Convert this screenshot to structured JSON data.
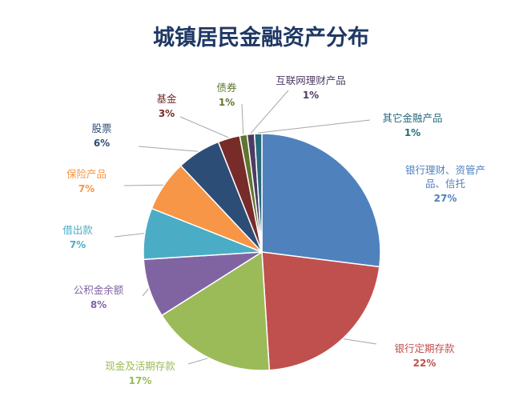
{
  "chart_data": {
    "type": "pie",
    "title": "城镇居民金融资产分布",
    "colors": {
      "title": "#1f3864"
    },
    "slices": [
      {
        "label": "银行理财、资管产品、信托",
        "lines": [
          "银行理财、资管产",
          "品、信托"
        ],
        "value": 27,
        "pct_text": "27%",
        "color": "#4f81bd",
        "text_color": "#4f81bd"
      },
      {
        "label": "银行定期存款",
        "lines": [
          "银行定期存款"
        ],
        "value": 22,
        "pct_text": "22%",
        "color": "#c0504d",
        "text_color": "#c0504d"
      },
      {
        "label": "现金及活期存款",
        "lines": [
          "现金及活期存款"
        ],
        "value": 17,
        "pct_text": "17%",
        "color": "#9bbb59",
        "text_color": "#9bbb59"
      },
      {
        "label": "公积金余额",
        "lines": [
          "公积金余额"
        ],
        "value": 8,
        "pct_text": "8%",
        "color": "#8064a2",
        "text_color": "#8064a2"
      },
      {
        "label": "借出款",
        "lines": [
          "借出款"
        ],
        "value": 7,
        "pct_text": "7%",
        "color": "#4bacc6",
        "text_color": "#4bacc6"
      },
      {
        "label": "保险产品",
        "lines": [
          "保险产品"
        ],
        "value": 7,
        "pct_text": "7%",
        "color": "#f79646",
        "text_color": "#f79646"
      },
      {
        "label": "股票",
        "lines": [
          "股票"
        ],
        "value": 6,
        "pct_text": "6%",
        "color": "#2c4d75",
        "text_color": "#2c4d75"
      },
      {
        "label": "基金",
        "lines": [
          "基金"
        ],
        "value": 3,
        "pct_text": "3%",
        "color": "#772c2a",
        "text_color": "#772c2a"
      },
      {
        "label": "债券",
        "lines": [
          "债券"
        ],
        "value": 1,
        "pct_text": "1%",
        "color": "#5f7530",
        "text_color": "#5f7530"
      },
      {
        "label": "互联网理财产品",
        "lines": [
          "互联网理财产品"
        ],
        "value": 1,
        "pct_text": "1%",
        "color": "#4d3b62",
        "text_color": "#4d3b62"
      },
      {
        "label": "其它金融产品",
        "lines": [
          "其它金融产品"
        ],
        "value": 1,
        "pct_text": "1%",
        "color": "#276a7c",
        "text_color": "#276a7c"
      }
    ]
  }
}
